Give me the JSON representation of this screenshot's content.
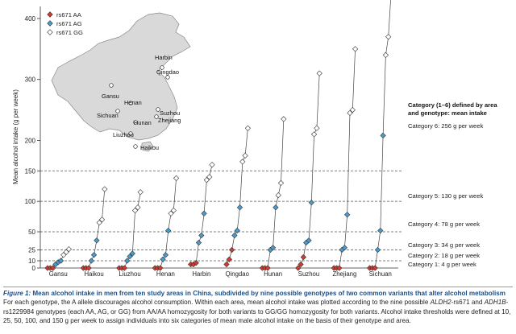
{
  "chart_data": {
    "type": "scatter",
    "title": "",
    "ylabel": "Mean alcohol intake (g per week)",
    "xlabel": "",
    "ylim": [
      0,
      450
    ],
    "yticks": [
      0,
      10,
      25,
      50,
      100,
      150,
      200,
      300,
      400
    ],
    "categories": [
      "Gansu",
      "Haikou",
      "Liuzhou",
      "Henan",
      "Harbin",
      "Qingdao",
      "Hunan",
      "Suzhou",
      "Zhejiang",
      "Sichuan"
    ],
    "legend": [
      {
        "name": "rs671 AA",
        "color": "#d63a2e",
        "marker": "diamond"
      },
      {
        "name": "rs671 AG",
        "color": "#4a9ccc",
        "marker": "diamond"
      },
      {
        "name": "rs671 GG",
        "color": "#ffffff",
        "marker": "diamond"
      }
    ],
    "series": [
      {
        "area": "Gansu",
        "AA": [
          0,
          0,
          0
        ],
        "AG": [
          5,
          8,
          10
        ],
        "GG": [
          18,
          22,
          26
        ]
      },
      {
        "area": "Haikou",
        "AA": [
          0,
          0,
          0
        ],
        "AG": [
          10,
          18,
          38
        ],
        "GG": [
          65,
          70,
          120
        ]
      },
      {
        "area": "Liuzhou",
        "AA": [
          0,
          0,
          0
        ],
        "AG": [
          10,
          16,
          20
        ],
        "GG": [
          85,
          90,
          115
        ]
      },
      {
        "area": "Henan",
        "AA": [
          0,
          0,
          0
        ],
        "AG": [
          12,
          18,
          52
        ],
        "GG": [
          80,
          85,
          138
        ]
      },
      {
        "area": "Harbin",
        "AA": [
          5,
          5,
          7
        ],
        "AG": [
          35,
          45,
          80
        ],
        "GG": [
          135,
          140,
          160
        ]
      },
      {
        "area": "Qingdao",
        "AA": [
          5,
          12,
          25
        ],
        "AG": [
          45,
          52,
          90
        ],
        "GG": [
          165,
          175,
          220
        ]
      },
      {
        "area": "Hunan",
        "AA": [
          0,
          0,
          0
        ],
        "AG": [
          25,
          28,
          90
        ],
        "GG": [
          110,
          130,
          235
        ]
      },
      {
        "area": "Suzhou",
        "AA": [
          0,
          5,
          15
        ],
        "AG": [
          35,
          38,
          98
        ],
        "GG": [
          210,
          220,
          310
        ]
      },
      {
        "area": "Zhejiang",
        "AA": [
          0,
          0,
          0
        ],
        "AG": [
          25,
          28,
          78
        ],
        "GG": [
          245,
          250,
          350
        ]
      },
      {
        "area": "Sichuan",
        "AA": [
          0,
          0,
          0
        ],
        "AG": [
          25,
          52,
          208
        ],
        "GG": [
          340,
          370,
          440
        ]
      }
    ],
    "thresholds": [
      10,
      25,
      50,
      100,
      150
    ],
    "category_labels": [
      {
        "text": "Category 1: 4 g per week",
        "value": 4
      },
      {
        "text": "Category 2: 18 g per week",
        "value": 18
      },
      {
        "text": "Category 3: 34 g per week",
        "value": 34
      },
      {
        "text": "Category 4: 78 g per week",
        "value": 78
      },
      {
        "text": "Category 5: 130 g per week",
        "value": 130
      },
      {
        "text": "Category 6: 256 g per week",
        "value": 256
      }
    ],
    "category_header": "Category (1–6) defined by area and genotype: mean intake",
    "map_labels": [
      "Harbin",
      "Qingdao",
      "Gansu",
      "Henan",
      "Suzhou",
      "Sichuan",
      "Zhejiang",
      "Hunan",
      "Liuzhou",
      "Haikou"
    ]
  },
  "caption": {
    "lead": "Figure 1:",
    "title": " Mean alcohol intake in men from ten study areas in China, subdivided by nine possible genotypes of two common variants that alter alcohol metabolism",
    "body_1": "For each genotype, the A allele discourages alcohol consumption. Within each area, mean alcohol intake was plotted according to the nine possible ",
    "gene_1": "ALDH2",
    "body_2": "-rs671 and ",
    "gene_2": "ADH1B",
    "body_3": "-rs1229984 genotypes (each AA, AG, or GG) from AA/AA homozygosity for both variants to GG/GG homozygosity for both variants. Alcohol intake thresholds were defined at 10, 25, 50, 100, and 150 g per week to assign individuals into six categories of mean male alcohol intake on the basis of their genotype and area."
  }
}
